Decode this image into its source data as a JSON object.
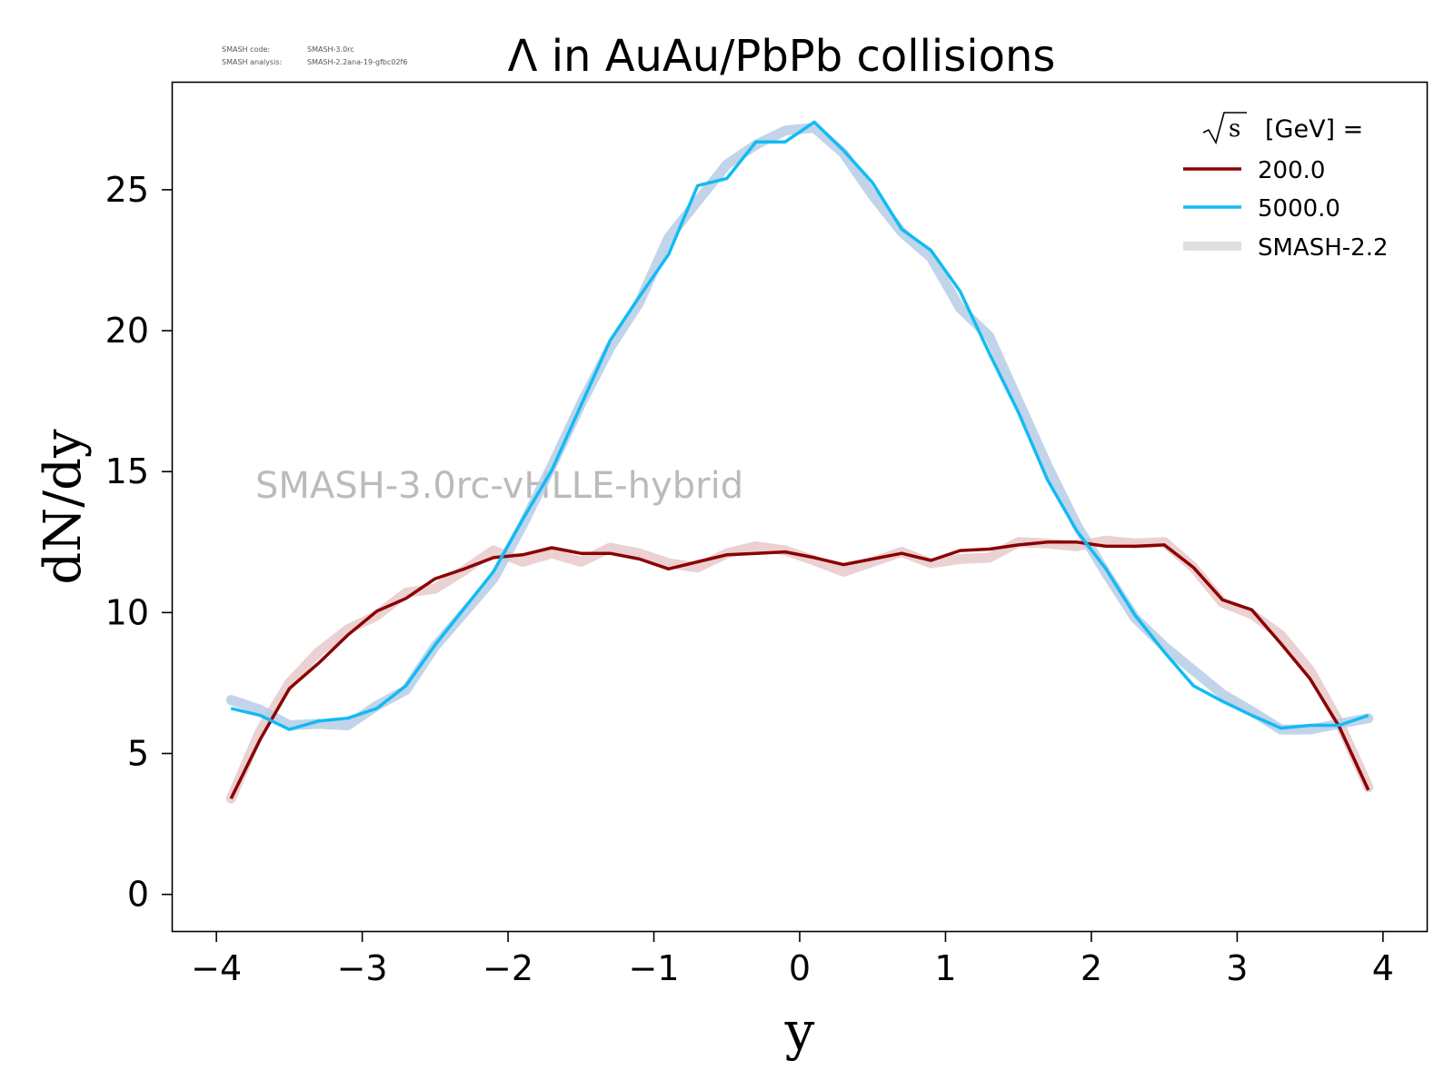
{
  "meta": {
    "code_label": "SMASH code:",
    "code_value": "SMASH-3.0rc",
    "analysis_label": "SMASH analysis:",
    "analysis_value": "SMASH-2.2ana-19-gfbc02f6"
  },
  "watermark": "SMASH-3.0rc-vHLLE-hybrid",
  "legend_title": "[GeV] =",
  "legend_sqrt_symbol": "√",
  "legend_sqrt_var": "s",
  "chart_data": {
    "type": "line",
    "title": "Λ in AuAu/PbPb collisions",
    "xlabel": "y",
    "ylabel": "dN/dy",
    "xlim": [
      -4.3,
      4.3
    ],
    "ylim": [
      -1.3,
      28.8
    ],
    "xticks": [
      -4,
      -3,
      -2,
      -1,
      0,
      1,
      2,
      3,
      4
    ],
    "xtick_labels": [
      "−4",
      "−3",
      "−2",
      "−1",
      "0",
      "1",
      "2",
      "3",
      "4"
    ],
    "yticks": [
      0,
      5,
      10,
      15,
      20,
      25
    ],
    "ytick_labels": [
      "0",
      "5",
      "10",
      "15",
      "20",
      "25"
    ],
    "grid": false,
    "legend_position": "top-right",
    "x": [
      -3.9,
      -3.7,
      -3.5,
      -3.3,
      -3.1,
      -2.9,
      -2.7,
      -2.5,
      -2.3,
      -2.1,
      -1.9,
      -1.7,
      -1.5,
      -1.3,
      -1.1,
      -0.9,
      -0.7,
      -0.5,
      -0.3,
      -0.1,
      0.1,
      0.3,
      0.5,
      0.7,
      0.9,
      1.1,
      1.3,
      1.5,
      1.7,
      1.9,
      2.1,
      2.3,
      2.5,
      2.7,
      2.9,
      3.1,
      3.3,
      3.5,
      3.7,
      3.9
    ],
    "series": [
      {
        "name": "200.0",
        "color": "#8b0000",
        "values": [
          3.4,
          5.5,
          7.3,
          8.2,
          9.2,
          10.05,
          10.5,
          11.2,
          11.55,
          11.95,
          12.05,
          12.3,
          12.1,
          12.1,
          11.9,
          11.55,
          11.8,
          12.05,
          12.1,
          12.15,
          11.95,
          11.7,
          11.9,
          12.1,
          11.85,
          12.2,
          12.25,
          12.4,
          12.5,
          12.5,
          12.35,
          12.35,
          12.4,
          11.6,
          10.45,
          10.1,
          8.9,
          7.65,
          5.95,
          3.7
        ]
      },
      {
        "name": "5000.0",
        "color": "#11bbf3",
        "values": [
          6.6,
          6.35,
          5.85,
          6.15,
          6.25,
          6.6,
          7.4,
          8.85,
          10.15,
          11.45,
          13.3,
          15.05,
          17.35,
          19.65,
          21.2,
          22.7,
          25.15,
          25.4,
          26.7,
          26.7,
          27.4,
          26.4,
          25.25,
          23.6,
          22.85,
          21.4,
          19.2,
          17.1,
          14.7,
          12.9,
          11.55,
          9.9,
          8.6,
          7.4,
          6.85,
          6.35,
          5.9,
          6.0,
          6.0,
          6.35
        ]
      }
    ],
    "reference_bands": [
      {
        "name": "SMASH-2.2",
        "legend_color": "#e0e0e0",
        "series": "200.0",
        "color": "#e7c9c9",
        "values": [
          3.4,
          5.8,
          7.5,
          8.6,
          9.4,
          9.9,
          10.7,
          10.85,
          11.5,
          12.2,
          11.8,
          12.1,
          11.8,
          12.3,
          12.1,
          11.75,
          11.6,
          12.1,
          12.35,
          12.2,
          11.85,
          11.45,
          11.8,
          12.15,
          11.75,
          11.9,
          11.95,
          12.5,
          12.45,
          12.35,
          12.55,
          12.45,
          12.5,
          11.6,
          10.35,
          9.95,
          9.2,
          7.95,
          6.1,
          3.8
        ]
      },
      {
        "name": "SMASH-2.2",
        "series": "5000.0",
        "color": "#b7cde6",
        "values": [
          6.9,
          6.55,
          6.0,
          6.05,
          6.0,
          6.7,
          7.25,
          8.8,
          10.0,
          11.2,
          13.1,
          15.2,
          17.4,
          19.4,
          21.0,
          23.3,
          24.6,
          25.9,
          26.6,
          27.1,
          27.2,
          26.3,
          24.8,
          23.5,
          22.6,
          20.8,
          19.8,
          17.5,
          15.2,
          13.1,
          11.4,
          9.8,
          8.8,
          7.95,
          7.1,
          6.5,
          5.85,
          5.85,
          6.05,
          6.25
        ]
      }
    ]
  }
}
